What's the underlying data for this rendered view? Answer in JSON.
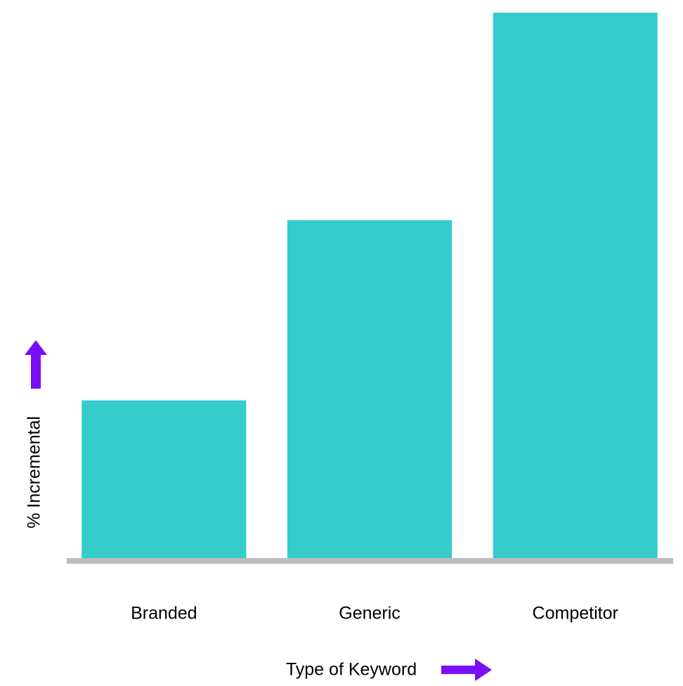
{
  "chart_data": {
    "type": "bar",
    "x_label": "Type of Keyword",
    "y_label": "% Incremental",
    "categories": [
      "Branded",
      "Generic",
      "Competitor"
    ],
    "values": [
      29,
      62,
      100
    ],
    "color": "#35cccc",
    "ylim": [
      0,
      100
    ]
  }
}
